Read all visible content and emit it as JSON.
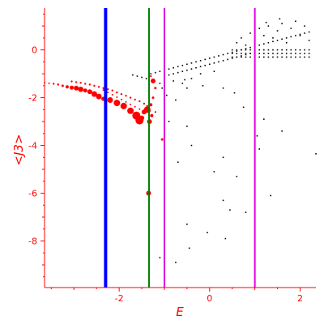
{
  "chart_data": {
    "type": "scatter",
    "title": "",
    "xlabel": "E",
    "ylabel": "<J3>",
    "xlim": [
      -3.65,
      2.35
    ],
    "ylim": [
      -9.95,
      1.75
    ],
    "grid": false,
    "colors": {
      "axis": "#ff0000",
      "dots": "#000000",
      "red_points": "#ff0000",
      "line_blue": "#0000ff",
      "line_green": "#008000",
      "line_magenta": "#e000e0"
    },
    "x_ticks": [
      {
        "value": -2,
        "label": "-2"
      },
      {
        "value": 0,
        "label": "0"
      },
      {
        "value": 2,
        "label": "2"
      }
    ],
    "y_ticks": [
      {
        "value": 0,
        "label": "0"
      },
      {
        "value": -2,
        "label": "-2"
      },
      {
        "value": -4,
        "label": "-4"
      },
      {
        "value": -6,
        "label": "-6"
      },
      {
        "value": -8,
        "label": "-8"
      }
    ],
    "vertical_lines": [
      {
        "x": -2.3,
        "color": "#0000ff",
        "width": 4
      },
      {
        "x": -1.34,
        "color": "#008000",
        "width": 2
      },
      {
        "x": -1.0,
        "color": "#e000e0",
        "width": 2
      },
      {
        "x": 1.0,
        "color": "#e000e0",
        "width": 2
      }
    ],
    "red_points": [
      [
        -3.65,
        -1.38,
        1
      ],
      [
        -3.55,
        -1.4,
        1
      ],
      [
        -3.45,
        -1.42,
        1.2
      ],
      [
        -3.35,
        -1.45,
        1.3
      ],
      [
        -3.25,
        -1.5,
        1.5
      ],
      [
        -3.15,
        -1.55,
        2
      ],
      [
        -3.05,
        -1.58,
        2.5
      ],
      [
        -2.95,
        -1.6,
        3
      ],
      [
        -2.85,
        -1.65,
        3.3
      ],
      [
        -2.75,
        -1.7,
        2.5
      ],
      [
        -2.65,
        -1.75,
        3
      ],
      [
        -2.55,
        -1.85,
        3.5
      ],
      [
        -2.45,
        -1.95,
        3.5
      ],
      [
        -2.35,
        -2.05,
        2.5
      ],
      [
        -2.2,
        -2.1,
        3.5
      ],
      [
        -2.05,
        -2.22,
        4
      ],
      [
        -1.9,
        -2.35,
        4
      ],
      [
        -1.75,
        -2.55,
        4
      ],
      [
        -1.62,
        -2.75,
        5
      ],
      [
        -1.55,
        -2.95,
        5
      ],
      [
        -1.5,
        -2.85,
        3
      ],
      [
        -1.45,
        -2.6,
        3
      ],
      [
        -1.38,
        -2.5,
        4
      ],
      [
        -1.33,
        -3.0,
        3
      ],
      [
        -1.28,
        -2.75,
        2
      ],
      [
        -3.05,
        -1.32,
        1.2
      ],
      [
        -2.95,
        -1.35,
        1.2
      ],
      [
        -2.85,
        -1.38,
        1.2
      ],
      [
        -2.75,
        -1.42,
        1.2
      ],
      [
        -2.65,
        -1.45,
        1.2
      ],
      [
        -2.55,
        -1.5,
        1.2
      ],
      [
        -2.45,
        -1.55,
        1.2
      ],
      [
        -2.35,
        -1.6,
        1.2
      ],
      [
        -2.25,
        -1.65,
        1.2
      ],
      [
        -2.15,
        -1.7,
        1.2
      ],
      [
        -2.05,
        -1.78,
        1.2
      ],
      [
        -1.95,
        -1.85,
        1.2
      ],
      [
        -1.85,
        -1.92,
        1.2
      ],
      [
        -1.75,
        -2.0,
        1.2
      ],
      [
        -1.65,
        -2.08,
        1.2
      ],
      [
        -1.55,
        -2.15,
        1.2
      ],
      [
        -1.45,
        -2.25,
        1.2
      ],
      [
        -1.38,
        -2.35,
        1.2
      ],
      [
        -2.35,
        -1.68,
        1
      ],
      [
        -2.25,
        -1.78,
        1
      ],
      [
        -2.15,
        -1.88,
        1
      ],
      [
        -2.05,
        -1.98,
        1
      ],
      [
        -1.95,
        -2.08,
        1
      ],
      [
        -1.85,
        -2.18,
        1
      ],
      [
        -1.75,
        -2.28,
        1
      ],
      [
        -1.65,
        -2.38,
        1
      ],
      [
        -1.55,
        -2.48,
        1
      ],
      [
        -1.25,
        -1.3,
        3
      ],
      [
        -1.2,
        -1.6,
        1.5
      ],
      [
        -1.25,
        -2.0,
        1.5
      ],
      [
        -1.3,
        -2.3,
        2
      ],
      [
        -1.35,
        -2.55,
        2.5
      ],
      [
        -1.35,
        -6.0,
        3
      ],
      [
        -1.05,
        -3.75,
        1.5
      ],
      [
        -1.3,
        -1.1,
        1.2
      ]
    ],
    "black_points": [
      [
        -1.7,
        -1.05
      ],
      [
        -1.6,
        -1.1
      ],
      [
        -1.5,
        -1.15
      ],
      [
        -1.4,
        -1.2
      ],
      [
        -1.3,
        -1.0
      ],
      [
        -1.2,
        -0.95
      ],
      [
        -1.1,
        -0.9
      ],
      [
        -1.0,
        -0.85
      ],
      [
        -0.9,
        -0.8
      ],
      [
        -0.8,
        -0.75
      ],
      [
        -0.7,
        -0.7
      ],
      [
        -0.6,
        -0.65
      ],
      [
        -0.5,
        -0.6
      ],
      [
        -0.4,
        -0.55
      ],
      [
        -0.3,
        -0.5
      ],
      [
        -0.2,
        -0.45
      ],
      [
        -0.1,
        -0.4
      ],
      [
        0.0,
        -0.35
      ],
      [
        0.1,
        -0.3
      ],
      [
        0.2,
        -0.25
      ],
      [
        0.3,
        -0.2
      ],
      [
        0.4,
        -0.15
      ],
      [
        0.5,
        -0.1
      ],
      [
        0.6,
        -0.05
      ],
      [
        0.7,
        0.0
      ],
      [
        0.8,
        0.05
      ],
      [
        0.9,
        0.1
      ],
      [
        1.0,
        0.15
      ],
      [
        1.1,
        0.2
      ],
      [
        1.2,
        0.25
      ],
      [
        1.3,
        0.3
      ],
      [
        1.4,
        0.35
      ],
      [
        1.5,
        0.4
      ],
      [
        1.6,
        0.45
      ],
      [
        1.7,
        0.5
      ],
      [
        1.8,
        0.55
      ],
      [
        1.9,
        0.6
      ],
      [
        2.0,
        0.65
      ],
      [
        2.1,
        0.7
      ],
      [
        2.2,
        0.75
      ],
      [
        -1.0,
        -1.1
      ],
      [
        -0.9,
        -1.05
      ],
      [
        -0.8,
        -1.0
      ],
      [
        -0.7,
        -0.95
      ],
      [
        -0.6,
        -0.9
      ],
      [
        -0.5,
        -0.85
      ],
      [
        -0.4,
        -0.8
      ],
      [
        -0.3,
        -0.75
      ],
      [
        -0.2,
        -0.7
      ],
      [
        -0.1,
        -0.65
      ],
      [
        0.0,
        -0.6
      ],
      [
        0.1,
        -0.55
      ],
      [
        0.2,
        -0.5
      ],
      [
        0.3,
        -0.45
      ],
      [
        0.4,
        -0.4
      ],
      [
        0.5,
        -0.35
      ],
      [
        0.6,
        -0.3
      ],
      [
        0.7,
        -0.25
      ],
      [
        0.8,
        -0.2
      ],
      [
        0.9,
        -0.15
      ],
      [
        1.0,
        -0.1
      ],
      [
        0.5,
        -0.3
      ],
      [
        0.6,
        -0.3
      ],
      [
        0.7,
        -0.3
      ],
      [
        0.8,
        -0.3
      ],
      [
        0.9,
        -0.3
      ],
      [
        1.0,
        -0.3
      ],
      [
        1.1,
        -0.3
      ],
      [
        1.2,
        -0.3
      ],
      [
        1.3,
        -0.3
      ],
      [
        1.4,
        -0.3
      ],
      [
        1.5,
        -0.3
      ],
      [
        1.6,
        -0.3
      ],
      [
        1.7,
        -0.3
      ],
      [
        1.8,
        -0.3
      ],
      [
        1.9,
        -0.3
      ],
      [
        2.0,
        -0.3
      ],
      [
        2.1,
        -0.3
      ],
      [
        2.2,
        -0.3
      ],
      [
        0.5,
        -0.15
      ],
      [
        0.6,
        -0.15
      ],
      [
        0.7,
        -0.15
      ],
      [
        0.8,
        -0.15
      ],
      [
        0.9,
        -0.15
      ],
      [
        1.0,
        -0.15
      ],
      [
        1.1,
        -0.15
      ],
      [
        1.2,
        -0.15
      ],
      [
        1.3,
        -0.15
      ],
      [
        1.4,
        -0.15
      ],
      [
        1.5,
        -0.15
      ],
      [
        1.6,
        -0.15
      ],
      [
        1.7,
        -0.15
      ],
      [
        1.8,
        -0.15
      ],
      [
        1.9,
        -0.15
      ],
      [
        2.0,
        -0.15
      ],
      [
        2.1,
        -0.15
      ],
      [
        2.2,
        -0.15
      ],
      [
        0.5,
        0.0
      ],
      [
        0.6,
        0.0
      ],
      [
        0.7,
        0.0
      ],
      [
        0.8,
        0.0
      ],
      [
        0.9,
        0.0
      ],
      [
        1.0,
        0.0
      ],
      [
        1.1,
        0.0
      ],
      [
        1.2,
        0.0
      ],
      [
        1.3,
        0.0
      ],
      [
        1.4,
        0.0
      ],
      [
        1.5,
        0.0
      ],
      [
        1.6,
        0.0
      ],
      [
        1.7,
        0.0
      ],
      [
        1.8,
        0.0
      ],
      [
        1.9,
        0.0
      ],
      [
        2.0,
        0.0
      ],
      [
        2.1,
        0.0
      ],
      [
        2.2,
        0.0
      ],
      [
        0.6,
        0.3
      ],
      [
        0.7,
        0.5
      ],
      [
        0.8,
        0.2
      ],
      [
        0.9,
        0.7
      ],
      [
        1.0,
        0.4
      ],
      [
        1.1,
        0.9
      ],
      [
        1.2,
        0.6
      ],
      [
        1.3,
        1.0
      ],
      [
        1.4,
        0.5
      ],
      [
        1.5,
        0.8
      ],
      [
        1.6,
        1.1
      ],
      [
        1.7,
        0.3
      ],
      [
        1.8,
        0.9
      ],
      [
        1.9,
        1.2
      ],
      [
        2.0,
        0.6
      ],
      [
        2.1,
        1.0
      ],
      [
        2.2,
        0.4
      ],
      [
        1.0,
        1.6
      ],
      [
        1.55,
        1.3
      ],
      [
        1.25,
        1.15
      ],
      [
        -0.8,
        -1.3
      ],
      [
        -0.6,
        -1.4
      ],
      [
        -0.4,
        -1.2
      ],
      [
        -0.2,
        -1.0
      ],
      [
        0.1,
        -0.9
      ],
      [
        -0.5,
        -1.6
      ],
      [
        -1.05,
        -1.6
      ],
      [
        -0.95,
        -1.9
      ],
      [
        -0.75,
        -2.1
      ],
      [
        -1.1,
        -1.4
      ],
      [
        -0.55,
        -1.25
      ],
      [
        -1.2,
        -2.6
      ],
      [
        -0.9,
        -3.0
      ],
      [
        -0.7,
        -4.7
      ],
      [
        -0.5,
        -3.2
      ],
      [
        -0.4,
        -4.0
      ],
      [
        0.1,
        -5.1
      ],
      [
        0.3,
        -4.5
      ],
      [
        0.6,
        -5.3
      ],
      [
        1.0,
        -5.35
      ],
      [
        1.1,
        -4.15
      ],
      [
        1.05,
        -3.6
      ],
      [
        1.35,
        -6.1
      ],
      [
        1.6,
        -3.4
      ],
      [
        2.35,
        -4.35
      ],
      [
        0.3,
        -6.3
      ],
      [
        0.8,
        -6.8
      ],
      [
        0.35,
        -7.9
      ],
      [
        -0.05,
        -7.65
      ],
      [
        -0.5,
        -7.3
      ],
      [
        -1.0,
        -7.15
      ],
      [
        -1.1,
        -8.7
      ],
      [
        -0.75,
        -8.9
      ],
      [
        -0.45,
        -8.3
      ],
      [
        0.45,
        -6.7
      ],
      [
        1.0,
        -2.6
      ],
      [
        1.2,
        -2.9
      ],
      [
        0.75,
        -2.4
      ],
      [
        0.55,
        -1.8
      ],
      [
        0.3,
        -1.6
      ],
      [
        -0.15,
        -1.5
      ]
    ]
  }
}
